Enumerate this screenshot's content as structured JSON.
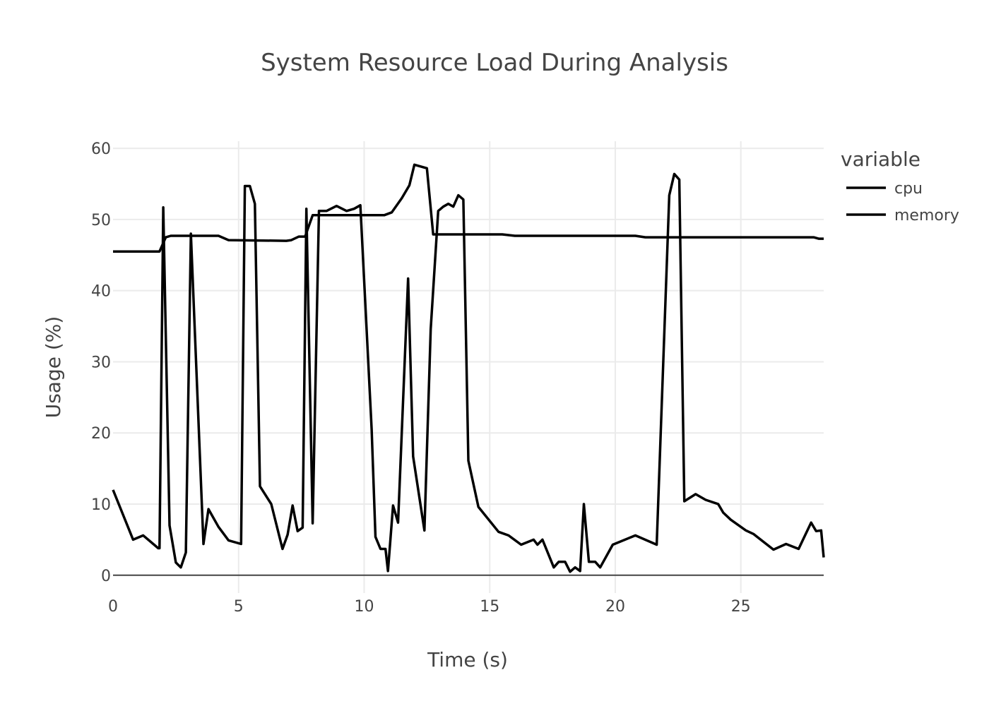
{
  "chart_data": {
    "type": "line",
    "title": "System Resource Load During Analysis",
    "xlabel": "Time (s)",
    "ylabel": "Usage (%)",
    "xlim": [
      0,
      28.3
    ],
    "ylim": [
      -2.5,
      61
    ],
    "x_ticks": [
      0,
      5,
      10,
      15,
      20,
      25
    ],
    "y_ticks": [
      0,
      10,
      20,
      30,
      40,
      50,
      60
    ],
    "grid": true,
    "legend": {
      "title": "variable",
      "position": "right"
    },
    "line_color": "#000000",
    "series": [
      {
        "name": "cpu",
        "points": [
          [
            0,
            12
          ],
          [
            0.8,
            5
          ],
          [
            1.2,
            5.6
          ],
          [
            1.8,
            3.8
          ],
          [
            1.85,
            3.8
          ],
          [
            2.0,
            51.7
          ],
          [
            2.25,
            7
          ],
          [
            2.5,
            1.8
          ],
          [
            2.7,
            1.1
          ],
          [
            2.9,
            3.2
          ],
          [
            3.1,
            48
          ],
          [
            3.6,
            4.4
          ],
          [
            3.8,
            9.3
          ],
          [
            4.2,
            6.8
          ],
          [
            4.6,
            4.9
          ],
          [
            5.1,
            4.4
          ],
          [
            5.25,
            54.7
          ],
          [
            5.45,
            54.7
          ],
          [
            5.65,
            52.2
          ],
          [
            5.85,
            12.5
          ],
          [
            6.3,
            10
          ],
          [
            6.75,
            3.7
          ],
          [
            6.95,
            5.7
          ],
          [
            7.15,
            9.8
          ],
          [
            7.35,
            6.2
          ],
          [
            7.55,
            6.7
          ],
          [
            7.7,
            51.5
          ],
          [
            7.95,
            7.3
          ],
          [
            8.2,
            51.2
          ],
          [
            8.5,
            51.2
          ],
          [
            8.9,
            51.9
          ],
          [
            9.3,
            51.2
          ],
          [
            9.6,
            51.5
          ],
          [
            9.85,
            52
          ],
          [
            10.3,
            20.5
          ],
          [
            10.45,
            5.4
          ],
          [
            10.65,
            3.7
          ],
          [
            10.85,
            3.7
          ],
          [
            10.95,
            0.6
          ],
          [
            11.15,
            9.8
          ],
          [
            11.35,
            7.4
          ],
          [
            11.75,
            41.7
          ],
          [
            11.95,
            16.7
          ],
          [
            12.4,
            6.3
          ],
          [
            12.65,
            34.6
          ],
          [
            12.95,
            51.2
          ],
          [
            13.15,
            51.8
          ],
          [
            13.35,
            52.2
          ],
          [
            13.55,
            51.8
          ],
          [
            13.75,
            53.4
          ],
          [
            13.95,
            52.8
          ],
          [
            14.15,
            16.1
          ],
          [
            14.55,
            9.6
          ],
          [
            15.35,
            6.1
          ],
          [
            15.75,
            5.6
          ],
          [
            16.25,
            4.3
          ],
          [
            16.75,
            5.0
          ],
          [
            16.9,
            4.3
          ],
          [
            17.1,
            5.0
          ],
          [
            17.55,
            1.1
          ],
          [
            17.75,
            1.9
          ],
          [
            18.0,
            1.9
          ],
          [
            18.2,
            0.5
          ],
          [
            18.4,
            1.1
          ],
          [
            18.6,
            0.6
          ],
          [
            18.75,
            10
          ],
          [
            18.95,
            1.9
          ],
          [
            19.2,
            1.9
          ],
          [
            19.4,
            1.1
          ],
          [
            19.9,
            4.3
          ],
          [
            20.8,
            5.6
          ],
          [
            21.65,
            4.3
          ],
          [
            22.15,
            53.4
          ],
          [
            22.35,
            56.4
          ],
          [
            22.55,
            55.6
          ],
          [
            22.75,
            10.4
          ],
          [
            23.2,
            11.4
          ],
          [
            23.6,
            10.6
          ],
          [
            24.1,
            10.0
          ],
          [
            24.3,
            8.8
          ],
          [
            24.6,
            7.8
          ],
          [
            25.2,
            6.3
          ],
          [
            25.5,
            5.8
          ],
          [
            26.3,
            3.6
          ],
          [
            26.8,
            4.4
          ],
          [
            27.3,
            3.7
          ],
          [
            27.8,
            7.4
          ],
          [
            28.0,
            6.2
          ],
          [
            28.2,
            6.3
          ],
          [
            28.3,
            2.5
          ]
        ]
      },
      {
        "name": "memory",
        "points": [
          [
            0,
            45.5
          ],
          [
            1.85,
            45.5
          ],
          [
            2.1,
            47.5
          ],
          [
            2.3,
            47.7
          ],
          [
            4.2,
            47.7
          ],
          [
            4.6,
            47.1
          ],
          [
            6.9,
            47.0
          ],
          [
            7.1,
            47.1
          ],
          [
            7.4,
            47.6
          ],
          [
            7.65,
            47.6
          ],
          [
            7.95,
            50.6
          ],
          [
            10.8,
            50.6
          ],
          [
            11.1,
            51.0
          ],
          [
            11.5,
            53.0
          ],
          [
            11.8,
            54.8
          ],
          [
            12.0,
            57.7
          ],
          [
            12.5,
            57.2
          ],
          [
            12.75,
            47.9
          ],
          [
            15.5,
            47.9
          ],
          [
            16.0,
            47.7
          ],
          [
            20.8,
            47.7
          ],
          [
            21.2,
            47.5
          ],
          [
            22.8,
            47.5
          ],
          [
            27.9,
            47.5
          ],
          [
            28.1,
            47.3
          ],
          [
            28.3,
            47.3
          ]
        ]
      }
    ]
  }
}
